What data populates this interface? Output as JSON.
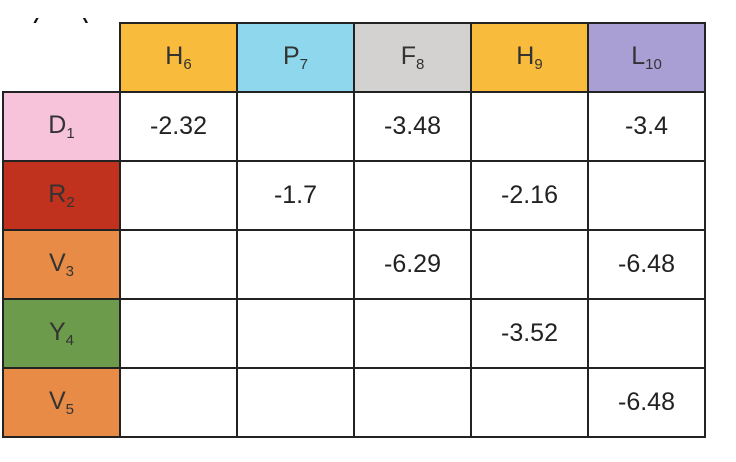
{
  "panel_label": "(c)",
  "chart_data": {
    "type": "table",
    "columns": [
      {
        "letter": "H",
        "index": "6",
        "color": "#f8bb3c"
      },
      {
        "letter": "P",
        "index": "7",
        "color": "#8ed7ec"
      },
      {
        "letter": "F",
        "index": "8",
        "color": "#d4d1d1"
      },
      {
        "letter": "H",
        "index": "9",
        "color": "#f8bb3c"
      },
      {
        "letter": "L",
        "index": "10",
        "color": "#a99fd4"
      }
    ],
    "rows": [
      {
        "letter": "D",
        "index": "1",
        "color": "#f6c3db",
        "values": [
          "-2.32",
          "",
          "-3.48",
          "",
          "-3.4"
        ]
      },
      {
        "letter": "R",
        "index": "2",
        "color": "#c0321d",
        "values": [
          "",
          "-1.7",
          "",
          "-2.16",
          ""
        ]
      },
      {
        "letter": "V",
        "index": "3",
        "color": "#e88b46",
        "values": [
          "",
          "",
          "-6.29",
          "",
          "-6.48"
        ]
      },
      {
        "letter": "Y",
        "index": "4",
        "color": "#6b9b4b",
        "values": [
          "",
          "",
          "",
          "-3.52",
          ""
        ]
      },
      {
        "letter": "V",
        "index": "5",
        "color": "#e88b46",
        "values": [
          "",
          "",
          "",
          "",
          "-6.48"
        ]
      }
    ]
  }
}
